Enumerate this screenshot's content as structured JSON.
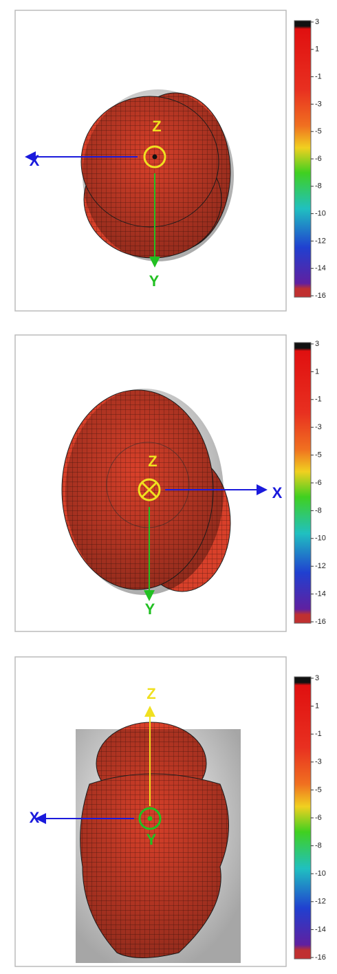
{
  "panels": [
    {
      "axes": {
        "x": "X",
        "y": "Y",
        "z": "Z"
      },
      "colorbar": [
        "3",
        "1",
        "-1",
        "-3",
        "-5",
        "-6",
        "-8",
        "-10",
        "-12",
        "-14",
        "-16"
      ]
    },
    {
      "axes": {
        "x": "X",
        "y": "Y",
        "z": "Z"
      },
      "colorbar": [
        "3",
        "1",
        "-1",
        "-3",
        "-5",
        "-6",
        "-8",
        "-10",
        "-12",
        "-14",
        "-16"
      ]
    },
    {
      "axes": {
        "x": "X",
        "y": "Y",
        "z": "Z"
      },
      "colorbar": [
        "3",
        "1",
        "-1",
        "-3",
        "-5",
        "-6",
        "-8",
        "-10",
        "-12",
        "-14",
        "-16"
      ]
    }
  ]
}
